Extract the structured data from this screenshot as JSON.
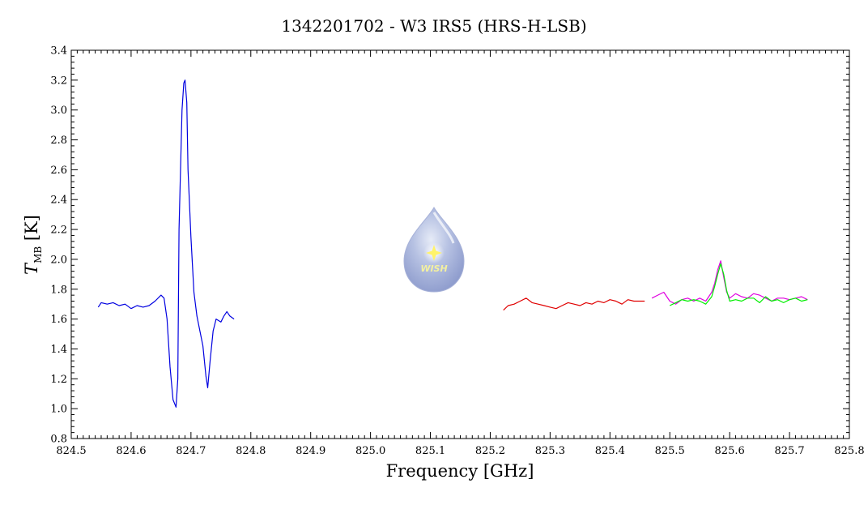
{
  "chart_data": {
    "type": "line",
    "title": "1342201702 - W3 IRS5 (HRS-H-LSB)",
    "xlabel": "Frequency [GHz]",
    "ylabel": {
      "main": "T",
      "sub": "MB",
      "unit": " [K]"
    },
    "xlim": [
      824.5,
      825.8
    ],
    "ylim": [
      0.8,
      3.4
    ],
    "xticks": [
      "824.5",
      "824.6",
      "824.7",
      "824.8",
      "824.9",
      "825.0",
      "825.1",
      "825.2",
      "825.3",
      "825.4",
      "825.5",
      "825.6",
      "825.7",
      "825.8"
    ],
    "yticks": [
      "0.8",
      "1.0",
      "1.2",
      "1.4",
      "1.6",
      "1.8",
      "2.0",
      "2.2",
      "2.4",
      "2.6",
      "2.8",
      "3.0",
      "3.2",
      "3.4"
    ],
    "grid": false,
    "logo": {
      "text": "WISH"
    },
    "series": [
      {
        "color": "#0000e0",
        "x": [
          824.545,
          824.55,
          824.56,
          824.57,
          824.58,
          824.59,
          824.6,
          824.61,
          824.62,
          824.63,
          824.64,
          824.65,
          824.655,
          824.66,
          824.665,
          824.67,
          824.675,
          824.678,
          824.68,
          824.685,
          824.688,
          824.69,
          824.693,
          824.695,
          824.7,
          824.705,
          824.71,
          824.715,
          824.72,
          824.725,
          824.728,
          824.732,
          824.737,
          824.742,
          824.75,
          824.755,
          824.76,
          824.765,
          824.772
        ],
        "y": [
          1.68,
          1.71,
          1.7,
          1.71,
          1.69,
          1.7,
          1.67,
          1.69,
          1.68,
          1.69,
          1.72,
          1.76,
          1.74,
          1.6,
          1.28,
          1.06,
          1.01,
          1.2,
          2.2,
          3.0,
          3.18,
          3.2,
          3.05,
          2.6,
          2.15,
          1.78,
          1.62,
          1.52,
          1.42,
          1.22,
          1.14,
          1.32,
          1.52,
          1.6,
          1.58,
          1.62,
          1.65,
          1.62,
          1.6
        ]
      },
      {
        "color": "#e00000",
        "x": [
          825.222,
          825.23,
          825.24,
          825.25,
          825.26,
          825.27,
          825.28,
          825.29,
          825.3,
          825.31,
          825.32,
          825.33,
          825.34,
          825.35,
          825.36,
          825.37,
          825.38,
          825.39,
          825.4,
          825.41,
          825.42,
          825.43,
          825.44,
          825.45,
          825.458
        ],
        "y": [
          1.66,
          1.69,
          1.7,
          1.72,
          1.74,
          1.71,
          1.7,
          1.69,
          1.68,
          1.67,
          1.69,
          1.71,
          1.7,
          1.69,
          1.71,
          1.7,
          1.72,
          1.71,
          1.73,
          1.72,
          1.7,
          1.73,
          1.72,
          1.72,
          1.72
        ]
      },
      {
        "color": "#e000e0",
        "x": [
          825.47,
          825.48,
          825.49,
          825.5,
          825.51,
          825.52,
          825.53,
          825.54,
          825.55,
          825.56,
          825.57,
          825.575,
          825.58,
          825.585,
          825.59,
          825.595,
          825.6,
          825.61,
          825.62,
          825.63,
          825.64,
          825.65,
          825.66,
          825.67,
          825.68,
          825.69,
          825.7,
          825.71,
          825.72,
          825.73
        ],
        "y": [
          1.74,
          1.76,
          1.78,
          1.72,
          1.7,
          1.73,
          1.74,
          1.72,
          1.74,
          1.72,
          1.78,
          1.84,
          1.93,
          1.99,
          1.88,
          1.78,
          1.74,
          1.77,
          1.75,
          1.74,
          1.77,
          1.76,
          1.74,
          1.72,
          1.74,
          1.74,
          1.73,
          1.74,
          1.75,
          1.73
        ]
      },
      {
        "color": "#00ee00",
        "x": [
          825.5,
          825.51,
          825.52,
          825.53,
          825.54,
          825.55,
          825.56,
          825.57,
          825.575,
          825.58,
          825.585,
          825.59,
          825.595,
          825.6,
          825.61,
          825.62,
          825.63,
          825.64,
          825.65,
          825.66,
          825.67,
          825.68,
          825.69,
          825.7,
          825.71,
          825.72,
          825.73
        ],
        "y": [
          1.69,
          1.71,
          1.73,
          1.72,
          1.73,
          1.72,
          1.7,
          1.75,
          1.82,
          1.9,
          1.97,
          1.9,
          1.79,
          1.72,
          1.73,
          1.72,
          1.74,
          1.74,
          1.71,
          1.75,
          1.72,
          1.73,
          1.71,
          1.73,
          1.74,
          1.72,
          1.73
        ]
      }
    ]
  }
}
